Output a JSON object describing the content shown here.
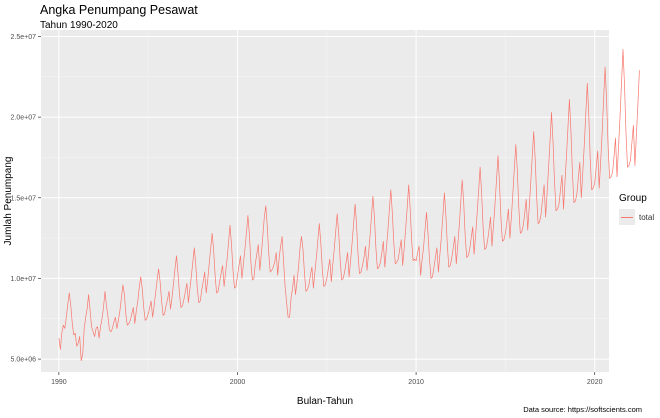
{
  "chart_data": {
    "type": "line",
    "title": "Angka Penumpang Pesawat",
    "subtitle": "Tahun 1990-2020",
    "xlabel": "Bulan-Tahun",
    "ylabel": "Jumlah Penumpang",
    "x_ticks": [
      {
        "value": 1990,
        "label": "1990"
      },
      {
        "value": 2000,
        "label": "2000"
      },
      {
        "value": 2010,
        "label": "2010"
      },
      {
        "value": 2020,
        "label": "2020"
      }
    ],
    "y_ticks": [
      {
        "value": 5000000,
        "label": "5.0e+06"
      },
      {
        "value": 10000000,
        "label": "1.0e+07"
      },
      {
        "value": 15000000,
        "label": "1.5e+07"
      },
      {
        "value": 20000000,
        "label": "2.0e+07"
      },
      {
        "value": 25000000,
        "label": "2.5e+07"
      }
    ],
    "xlim": [
      1989.0,
      2020.8
    ],
    "ylim": [
      4200000,
      25400000
    ],
    "grid": true,
    "legend": {
      "title": "Group",
      "position": "right"
    },
    "series": [
      {
        "name": "total",
        "color": "#f8766d",
        "x_start": 1990.0,
        "x_step": 0.0833333,
        "values": [
          6300000,
          5600000,
          6600000,
          7100000,
          6900000,
          7600000,
          8400000,
          9100000,
          8300000,
          7200000,
          6500000,
          6600000,
          5800000,
          6000000,
          6400000,
          4900000,
          5300000,
          6900000,
          7600000,
          8100000,
          9000000,
          8000000,
          7000000,
          6700000,
          6400000,
          6900000,
          7000000,
          6300000,
          7000000,
          7500000,
          8200000,
          9200000,
          8300000,
          7600000,
          6800000,
          6700000,
          6900000,
          7300000,
          7600000,
          6900000,
          7400000,
          8000000,
          8800000,
          9600000,
          9000000,
          7800000,
          7100000,
          7200000,
          7400000,
          7800000,
          8200000,
          7200000,
          8000000,
          8600000,
          9400000,
          10100000,
          9400000,
          8200000,
          7400000,
          7500000,
          7800000,
          8200000,
          8600000,
          7600000,
          8300000,
          9100000,
          9900000,
          10600000,
          9800000,
          8600000,
          7700000,
          7800000,
          8300000,
          8700000,
          9200000,
          8100000,
          8800000,
          9700000,
          10600000,
          11400000,
          10400000,
          9100000,
          8200000,
          8300000,
          8700000,
          9200000,
          9700000,
          8500000,
          9300000,
          10100000,
          11000000,
          11900000,
          10800000,
          9400000,
          8500000,
          8600000,
          9300000,
          9800000,
          10400000,
          9100000,
          9900000,
          10900000,
          11900000,
          12800000,
          11700000,
          10100000,
          9100000,
          9200000,
          9800000,
          10300000,
          10800000,
          9500000,
          10400000,
          11200000,
          12200000,
          13300000,
          12100000,
          10500000,
          9400000,
          9500000,
          10200000,
          10800000,
          11400000,
          10000000,
          10900000,
          11800000,
          12800000,
          13900000,
          12700000,
          11000000,
          9900000,
          10000000,
          10900000,
          11500000,
          12100000,
          10500000,
          11500000,
          12600000,
          13800000,
          14500000,
          13300000,
          11600000,
          10400000,
          10500000,
          10700000,
          11000000,
          11600000,
          10200000,
          11300000,
          12000000,
          12600000,
          11000000,
          9500000,
          8500000,
          7600000,
          7600000,
          8800000,
          9400000,
          10200000,
          9000000,
          9800000,
          10700000,
          11900000,
          12600000,
          11800000,
          10300000,
          9200000,
          9300000,
          9600000,
          10200000,
          10700000,
          9400000,
          10400000,
          11300000,
          12400000,
          13400000,
          12200000,
          10600000,
          9500000,
          9600000,
          10000000,
          10600000,
          11200000,
          9800000,
          10800000,
          11800000,
          12900000,
          14000000,
          12800000,
          11100000,
          9900000,
          10000000,
          10400000,
          11000000,
          11600000,
          10100000,
          11100000,
          12200000,
          13400000,
          14600000,
          13300000,
          11500000,
          10300000,
          10400000,
          10800000,
          11300000,
          12000000,
          10500000,
          11500000,
          12600000,
          13800000,
          15100000,
          13800000,
          11900000,
          10600000,
          10700000,
          11000000,
          11600000,
          12300000,
          10700000,
          11800000,
          12900000,
          14200000,
          15500000,
          14100000,
          12200000,
          10900000,
          11000000,
          11200000,
          11800000,
          12400000,
          10800000,
          11900000,
          13100000,
          14400000,
          15800000,
          14400000,
          12400000,
          11100000,
          11200000,
          11100000,
          11600000,
          12000000,
          10200000,
          11100000,
          11900000,
          13000000,
          14100000,
          12800000,
          11200000,
          10000000,
          10100000,
          10700000,
          11300000,
          11900000,
          10400000,
          11500000,
          12600000,
          13900000,
          15300000,
          13900000,
          12000000,
          10700000,
          10800000,
          11300000,
          11900000,
          12600000,
          10900000,
          12100000,
          13300000,
          14700000,
          16100000,
          14700000,
          12600000,
          11300000,
          11400000,
          11800000,
          12500000,
          13200000,
          11500000,
          12700000,
          14000000,
          15400000,
          16900000,
          15300000,
          13200000,
          11800000,
          11900000,
          12300000,
          13000000,
          13800000,
          12000000,
          13300000,
          14600000,
          16100000,
          17600000,
          16000000,
          13800000,
          12300000,
          12400000,
          12800000,
          13500000,
          14300000,
          12500000,
          13800000,
          15200000,
          16800000,
          18300000,
          16700000,
          14400000,
          12800000,
          12900000,
          13300000,
          14100000,
          14900000,
          13000000,
          14400000,
          15900000,
          17500000,
          19100000,
          17400000,
          15000000,
          13400000,
          13500000,
          14000000,
          14900000,
          15800000,
          13800000,
          15300000,
          16900000,
          18600000,
          20300000,
          18500000,
          16000000,
          14200000,
          14300000,
          14600000,
          15500000,
          16400000,
          14300000,
          15900000,
          17500000,
          19300000,
          21100000,
          19200000,
          16600000,
          14700000,
          14800000,
          15200000,
          16200000,
          17200000,
          15000000,
          16600000,
          18300000,
          20200000,
          22100000,
          20100000,
          17400000,
          15500000,
          15600000,
          15900000,
          16900000,
          17900000,
          15600000,
          17300000,
          19100000,
          21100000,
          23100000,
          21000000,
          18200000,
          16200000,
          16300000,
          16600000,
          17600000,
          18700000,
          16300000,
          18100000,
          20000000,
          22100000,
          24200000,
          22000000,
          19000000,
          16900000,
          17000000,
          17300000,
          18400000,
          19500000,
          17000000,
          18900000,
          20800000,
          22900000
        ]
      }
    ],
    "caption": "Data source: https://softscients.com"
  }
}
